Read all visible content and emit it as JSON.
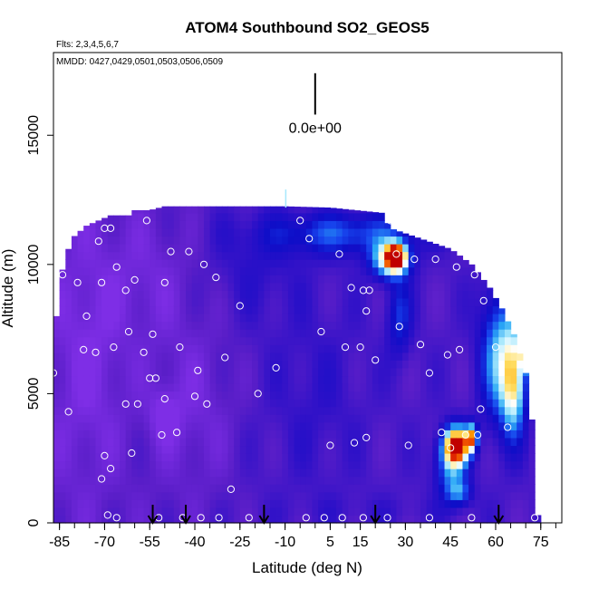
{
  "chart_data": {
    "type": "heatmap",
    "title": "ATOM4 Southbound SO2_GEOS5",
    "subtitle": "Flts: 2,3,4,5,6,7",
    "annotation": "MMDD: 0427,0429,0501,0503,0506,0509",
    "scale_label": "0.0e+00",
    "xlabel": "Latitude (deg N)",
    "ylabel": "Altitude (m)",
    "xlim": [
      -87,
      82
    ],
    "ylim": [
      0,
      18200
    ],
    "x_ticks": [
      -85,
      -70,
      -55,
      -40,
      -25,
      -10,
      5,
      15,
      30,
      45,
      60,
      75
    ],
    "y_ticks": [
      0,
      5000,
      10000,
      15000
    ],
    "grid": false,
    "colormap": [
      "#7e2ee6",
      "#5a1ec8",
      "#2a10c8",
      "#0e0ec8",
      "#1846ee",
      "#2aa8f5",
      "#a6e8fc",
      "#ffffff",
      "#ffe066",
      "#ffa000",
      "#e83000",
      "#c00000"
    ],
    "background_value": 0.12,
    "regions": [
      {
        "lat": -75,
        "alt": 6500,
        "wl": 12,
        "wa": 5000,
        "v": -0.08
      },
      {
        "lat": -55,
        "alt": 9500,
        "wl": 14,
        "wa": 2500,
        "v": -0.06
      },
      {
        "lat": -40,
        "alt": 4500,
        "wl": 14,
        "wa": 3500,
        "v": -0.07
      },
      {
        "lat": -50,
        "alt": 4200,
        "wl": 5,
        "wa": 1000,
        "v": -0.1
      },
      {
        "lat": -20,
        "alt": 10000,
        "wl": 15,
        "wa": 2000,
        "v": 0.06
      },
      {
        "lat": 0,
        "alt": 5000,
        "wl": 15,
        "wa": 3500,
        "v": 0.05
      },
      {
        "lat": 10,
        "alt": 11200,
        "wl": 25,
        "wa": 800,
        "v": 0.25
      },
      {
        "lat": 25,
        "alt": 10200,
        "wl": 6,
        "wa": 700,
        "v": 0.55
      },
      {
        "lat": 27,
        "alt": 10300,
        "wl": 3,
        "wa": 450,
        "v": 0.75
      },
      {
        "lat": 28,
        "alt": 8000,
        "wl": 4,
        "wa": 1500,
        "v": 0.2
      },
      {
        "lat": 61,
        "alt": 6500,
        "wl": 6,
        "wa": 2500,
        "v": 0.35
      },
      {
        "lat": 66,
        "alt": 5500,
        "wl": 4,
        "wa": 2000,
        "v": 0.52
      },
      {
        "lat": 70,
        "alt": 6800,
        "wl": 2,
        "wa": 700,
        "v": 0.62
      },
      {
        "lat": 45,
        "alt": 2200,
        "wl": 5,
        "wa": 1200,
        "v": 0.3
      },
      {
        "lat": 47,
        "alt": 3000,
        "wl": 4,
        "wa": 700,
        "v": 0.85
      },
      {
        "lat": 52,
        "alt": 3300,
        "wl": 2,
        "wa": 500,
        "v": 0.6
      },
      {
        "lat": 48,
        "alt": 1200,
        "wl": 4,
        "wa": 500,
        "v": 0.25
      },
      {
        "lat": 20,
        "alt": 500,
        "wl": 30,
        "wa": 600,
        "v": 0.03
      }
    ],
    "observations": [
      [
        -87,
        5800
      ],
      [
        -84,
        9600
      ],
      [
        -82,
        4300
      ],
      [
        -79,
        9300
      ],
      [
        -77,
        6700
      ],
      [
        -76,
        8000
      ],
      [
        -73,
        6600
      ],
      [
        -72,
        10900
      ],
      [
        -71,
        9300
      ],
      [
        -71,
        1700
      ],
      [
        -70,
        11400
      ],
      [
        -70,
        2600
      ],
      [
        -68,
        2100
      ],
      [
        -68,
        11400
      ],
      [
        -67,
        6800
      ],
      [
        -66,
        9900
      ],
      [
        -63,
        4600
      ],
      [
        -63,
        9000
      ],
      [
        -62,
        7400
      ],
      [
        -61,
        2700
      ],
      [
        -60,
        9400
      ],
      [
        -59,
        4600
      ],
      [
        -57,
        6600
      ],
      [
        -56,
        11700
      ],
      [
        -55,
        5600
      ],
      [
        -54,
        7300
      ],
      [
        -53,
        5600
      ],
      [
        -51,
        3400
      ],
      [
        -50,
        9300
      ],
      [
        -50,
        4800
      ],
      [
        -48,
        10500
      ],
      [
        -46,
        3500
      ],
      [
        -45,
        6800
      ],
      [
        -42,
        10500
      ],
      [
        -40,
        4900
      ],
      [
        -39,
        5900
      ],
      [
        -37,
        10000
      ],
      [
        -36,
        4600
      ],
      [
        -33,
        9500
      ],
      [
        -30,
        6400
      ],
      [
        -28,
        1300
      ],
      [
        -25,
        8400
      ],
      [
        -19,
        5000
      ],
      [
        -13,
        6000
      ],
      [
        -5,
        11700
      ],
      [
        -2,
        11000
      ],
      [
        2,
        7400
      ],
      [
        5,
        3000
      ],
      [
        8,
        10400
      ],
      [
        10,
        6800
      ],
      [
        12,
        9100
      ],
      [
        13,
        3100
      ],
      [
        15,
        6800
      ],
      [
        16,
        9000
      ],
      [
        17,
        8200
      ],
      [
        17,
        3300
      ],
      [
        18,
        9000
      ],
      [
        20,
        6300
      ],
      [
        25,
        11700
      ],
      [
        27,
        10400
      ],
      [
        28,
        7600
      ],
      [
        31,
        3000
      ],
      [
        33,
        10200
      ],
      [
        35,
        6900
      ],
      [
        38,
        5800
      ],
      [
        40,
        10200
      ],
      [
        42,
        3500
      ],
      [
        44,
        6500
      ],
      [
        45,
        2900
      ],
      [
        47,
        9900
      ],
      [
        48,
        6700
      ],
      [
        50,
        3400
      ],
      [
        53,
        9600
      ],
      [
        54,
        3400
      ],
      [
        55,
        4400
      ],
      [
        56,
        8600
      ],
      [
        60,
        6800
      ],
      [
        64,
        3700
      ],
      [
        -69,
        300
      ],
      [
        -66,
        200
      ],
      [
        -52,
        200
      ],
      [
        -44,
        200
      ],
      [
        -38,
        200
      ],
      [
        -32,
        200
      ],
      [
        -22,
        200
      ],
      [
        -3,
        200
      ],
      [
        3,
        200
      ],
      [
        9,
        200
      ],
      [
        16,
        200
      ],
      [
        24,
        200
      ],
      [
        38,
        200
      ],
      [
        52,
        200
      ],
      [
        73,
        200
      ]
    ],
    "arrows_lat": [
      -54,
      -43,
      -17,
      20,
      61
    ],
    "scale_bar": {
      "lat": 0,
      "alt": [
        15800,
        17400
      ]
    }
  }
}
